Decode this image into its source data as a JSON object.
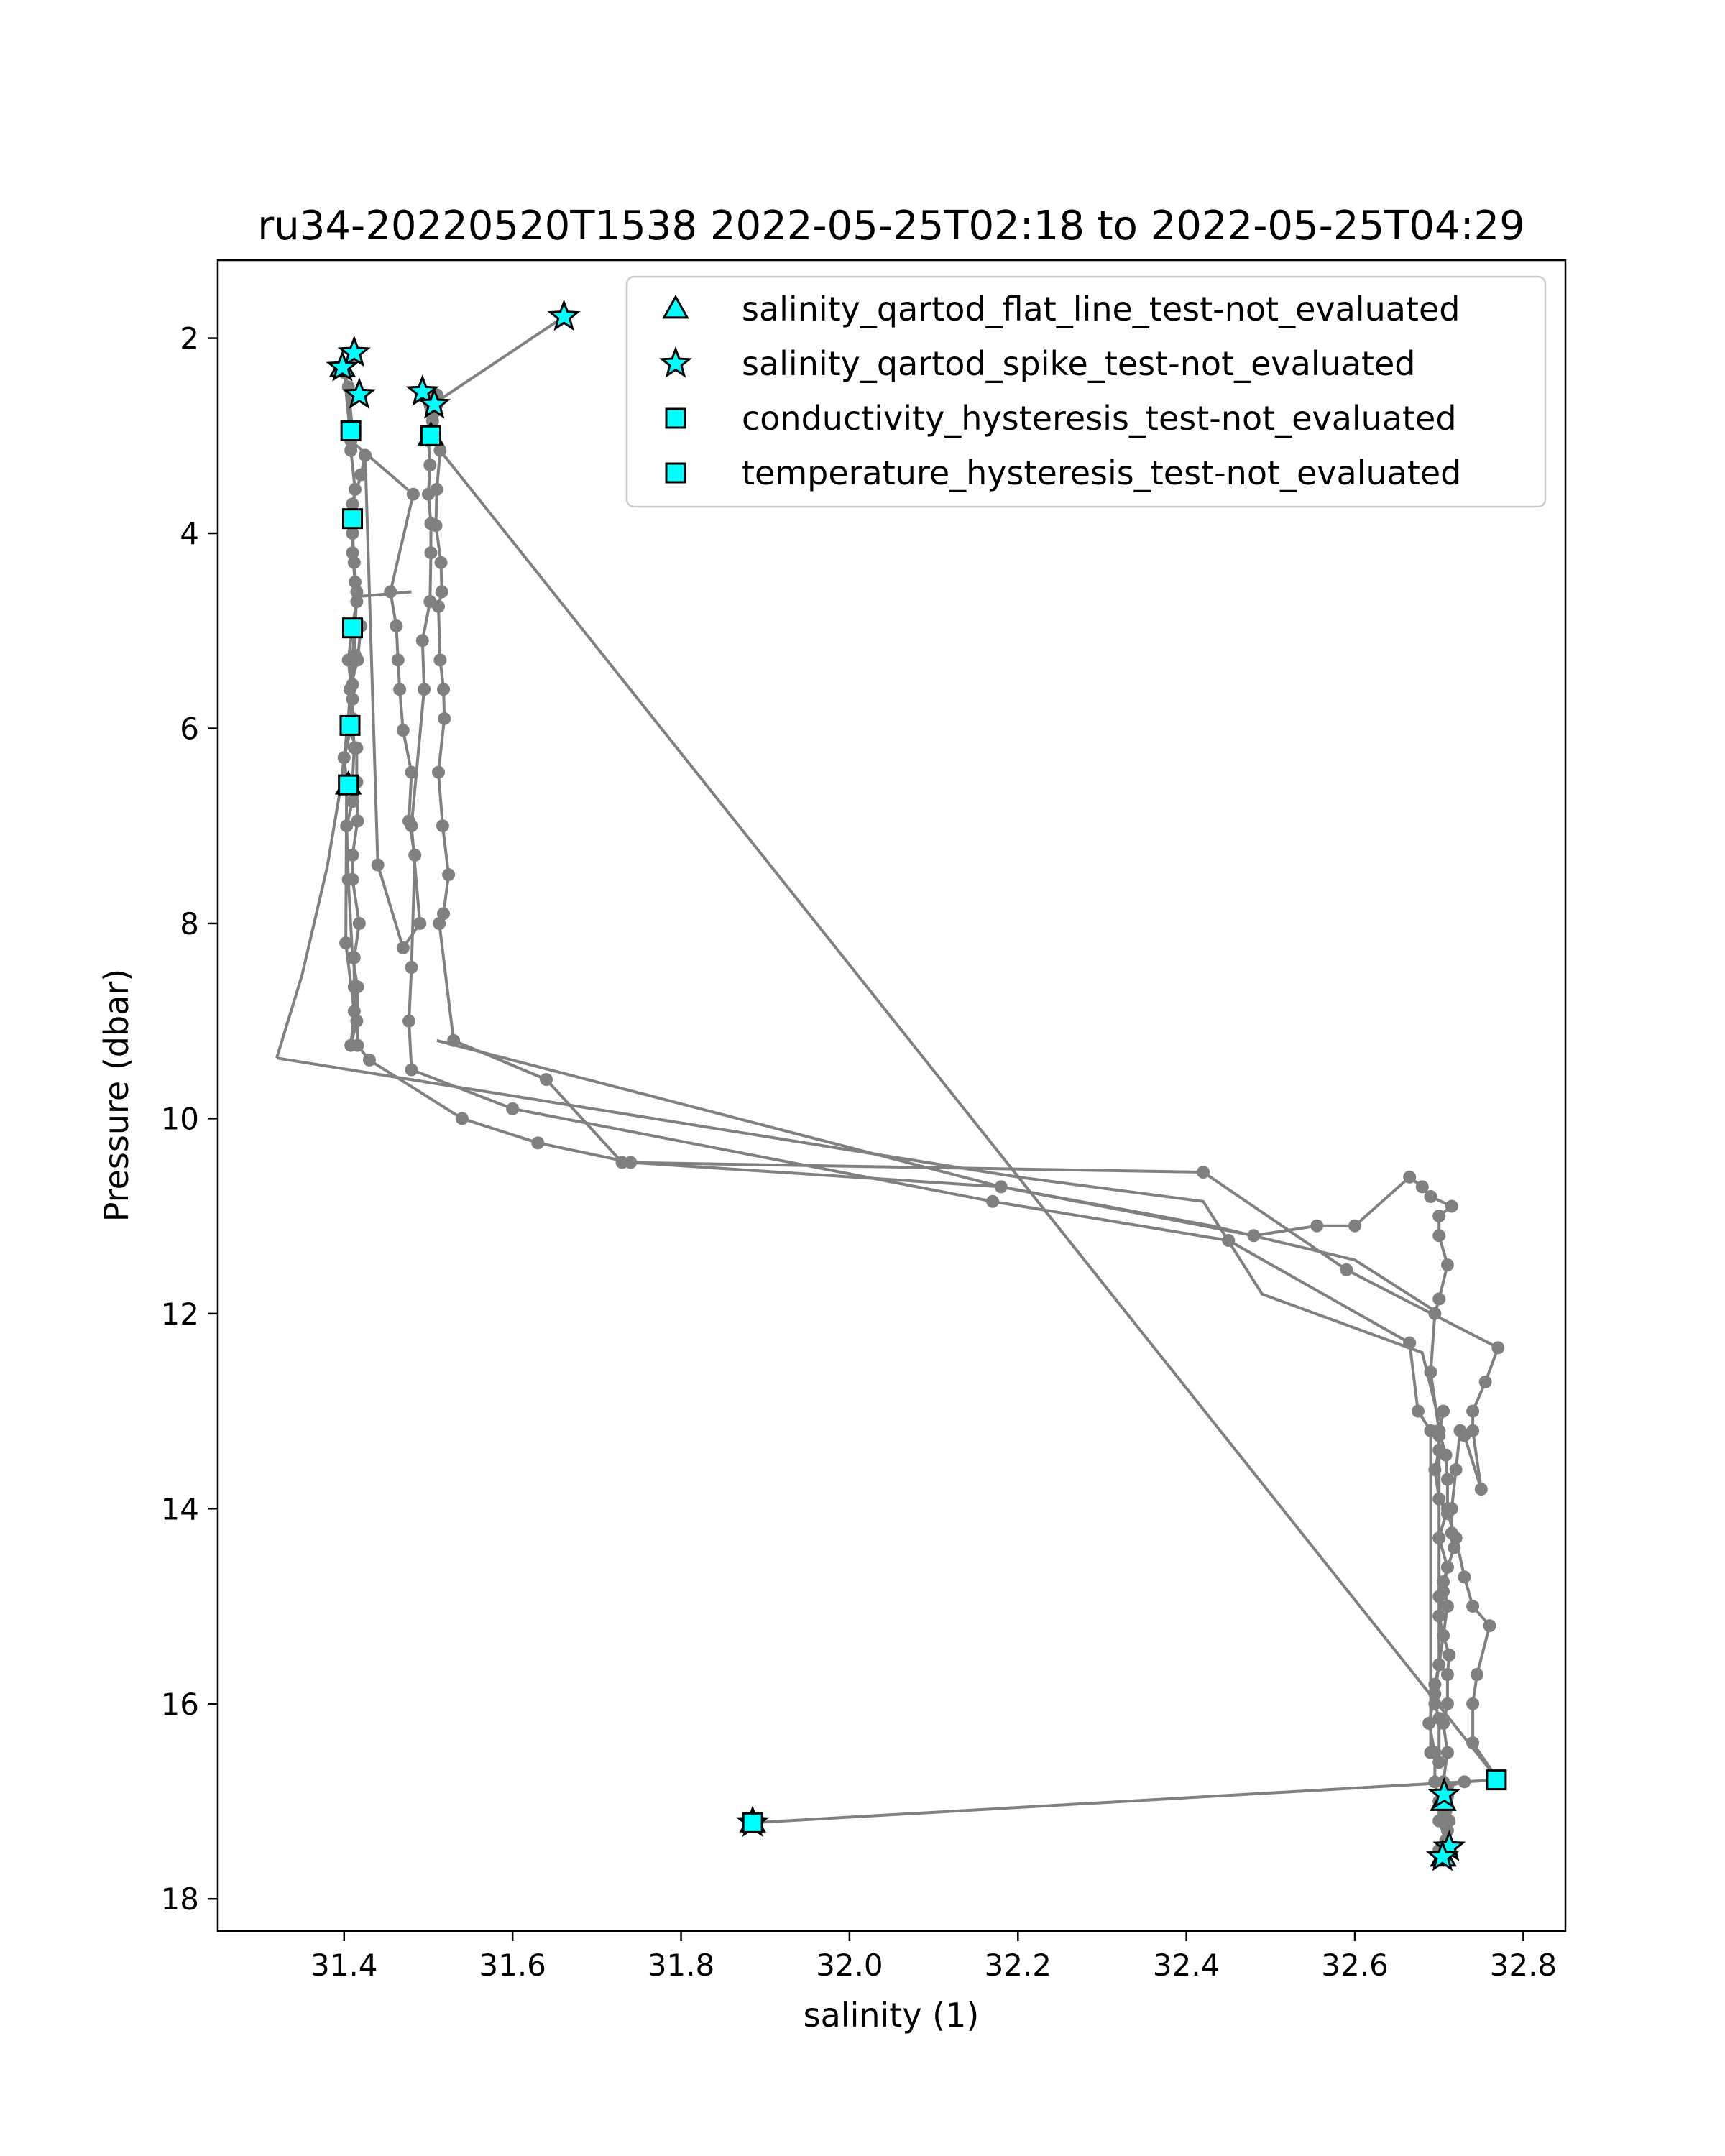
{
  "chart_data": {
    "type": "scatter",
    "title": "ru34-20220520T1538 2022-05-25T02:18 to 2022-05-25T04:29",
    "xlabel": "salinity (1)",
    "ylabel": "Pressure (dbar)",
    "xlim": [
      31.25,
      32.85
    ],
    "ylim": [
      18.33,
      1.2
    ],
    "y_inverted": true,
    "grid": false,
    "legend_position": "top-right",
    "xticks": [
      "31.4",
      "31.6",
      "31.8",
      "32.0",
      "32.2",
      "32.4",
      "32.6",
      "32.8"
    ],
    "yticks": [
      "2",
      "4",
      "6",
      "8",
      "10",
      "12",
      "14",
      "16",
      "18"
    ],
    "colors": {
      "line": "#808080",
      "marker_face": "#00ffff",
      "marker_edge": "#000000"
    },
    "profile": {
      "name": "salinity",
      "x": [
        31.661,
        31.505,
        31.493,
        31.505,
        31.514,
        31.51,
        31.509,
        31.515,
        31.516,
        31.512,
        31.514,
        31.518,
        31.519,
        31.512,
        31.517,
        31.524,
        31.518,
        31.513,
        31.53,
        31.64,
        31.73,
        32.42,
        32.59,
        32.77,
        32.755,
        32.74,
        32.74,
        32.75,
        32.73,
        32.725,
        32.72,
        32.715,
        32.715,
        32.718,
        32.71,
        32.705,
        32.71,
        32.705,
        32.712,
        32.71,
        32.71,
        32.705,
        32.71,
        32.705,
        32.71,
        32.708,
        32.71,
        32.705,
        32.7,
        32.708,
        32.7,
        32.7,
        32.695,
        32.695,
        32.688,
        32.695,
        32.7,
        32.705,
        32.7,
        32.705,
        32.71,
        32.7,
        32.71,
        32.71,
        32.708,
        32.7,
        32.705,
        32.7,
        32.7,
        32.7,
        32.7,
        32.7,
        32.695,
        32.695,
        32.7,
        32.7,
        32.69,
        32.69,
        32.675,
        32.665,
        32.45,
        32.17,
        31.6,
        31.48,
        31.477,
        31.48,
        31.484,
        31.477,
        31.48,
        31.47,
        31.466,
        31.464,
        31.462,
        31.455,
        31.482,
        31.408,
        31.4,
        31.405,
        31.41,
        31.408,
        31.413,
        31.408,
        31.41,
        31.41,
        31.413,
        31.415,
        31.41,
        31.405,
        31.41,
        31.405,
        31.415,
        31.415,
        31.416,
        31.41,
        31.41,
        31.418,
        31.412,
        31.412,
        31.415,
        31.408,
        31.412,
        31.402,
        31.403,
        31.4,
        31.408,
        31.41,
        31.407,
        31.416,
        31.42
      ],
      "y": [
        1.78,
        2.68,
        2.58,
        3.0,
        3.15,
        3.55,
        3.92,
        4.3,
        4.6,
        4.75,
        5.3,
        5.6,
        5.9,
        6.45,
        7.0,
        7.5,
        7.9,
        8.0,
        9.2,
        9.6,
        10.45,
        10.55,
        11.55,
        12.35,
        12.7,
        13.0,
        13.2,
        13.8,
        13.25,
        13.2,
        13.6,
        14.0,
        14.25,
        14.4,
        14.6,
        14.75,
        15.0,
        15.3,
        15.5,
        15.7,
        16.0,
        16.2,
        16.5,
        16.8,
        16.95,
        17.1,
        17.3,
        17.5,
        17.55,
        17.4,
        17.2,
        17.0,
        16.8,
        16.5,
        16.2,
        15.9,
        15.6,
        15.3,
        15.1,
        14.85,
        14.6,
        14.3,
        14.0,
        13.7,
        13.45,
        13.2,
        13.0,
        13.25,
        14.3,
        14.9,
        15.1,
        15.6,
        15.8,
        16.0,
        16.15,
        16.6,
        16.5,
        13.2,
        13.0,
        12.3,
        11.25,
        10.85,
        9.9,
        9.5,
        9.0,
        8.45,
        7.3,
        6.95,
        6.45,
        6.02,
        5.6,
        5.3,
        4.95,
        4.6,
        3.6,
        3.05,
        2.35,
        2.5,
        2.95,
        3.15,
        3.55,
        3.85,
        4.0,
        4.2,
        4.5,
        4.7,
        4.95,
        5.3,
        5.7,
        6.0,
        6.2,
        6.55,
        6.95,
        7.3,
        7.55,
        8.0,
        8.35,
        8.65,
        9.0,
        9.25,
        8.9,
        8.2,
        6.55,
        6.3,
        6.0,
        5.9,
        5.6,
        5.3,
        4.95
      ],
      "x2": [
        32.7,
        32.712,
        32.705,
        32.71,
        32.73,
        32.77,
        32.74,
        32.74,
        32.745,
        32.76,
        32.74,
        32.73,
        32.72,
        32.71,
        32.7,
        32.695,
        32.7,
        32.7,
        32.69,
        32.695,
        32.7,
        32.71,
        32.7,
        32.7,
        32.715,
        32.69,
        32.68,
        32.665,
        32.6,
        32.555,
        32.48,
        32.18,
        31.74,
        31.63,
        31.54,
        31.43,
        31.416,
        31.416,
        31.41,
        31.405,
        31.403,
        31.41,
        31.41,
        31.412,
        31.41,
        31.41,
        31.413,
        31.413,
        31.415,
        31.412,
        31.41,
        31.41,
        31.42,
        31.425,
        31.44,
        31.47,
        31.49,
        31.48,
        31.495,
        31.493,
        31.502,
        31.503,
        31.503,
        31.5,
        31.502,
        31.5,
        31.503,
        31.505,
        31.505,
        31.508,
        31.51,
        31.508,
        31.51
      ],
      "y2": [
        17.5,
        17.2,
        17.0,
        16.85,
        16.8,
        16.78,
        16.4,
        16.0,
        15.7,
        15.2,
        15.0,
        14.7,
        14.3,
        14.05,
        13.9,
        13.6,
        13.4,
        13.2,
        12.6,
        12.0,
        11.85,
        11.5,
        11.2,
        11.0,
        10.9,
        10.8,
        10.7,
        10.6,
        11.1,
        11.1,
        11.2,
        10.7,
        10.45,
        10.25,
        10.0,
        9.4,
        9.25,
        8.65,
        8.35,
        7.55,
        7.0,
        6.75,
        6.55,
        6.2,
        5.9,
        5.55,
        5.25,
        5.0,
        4.6,
        4.3,
        4.0,
        3.7,
        3.4,
        3.2,
        7.4,
        8.25,
        8.0,
        7.0,
        5.6,
        5.1,
        4.7,
        4.2,
        3.9,
        3.6,
        3.3,
        3.05,
        3.0,
        2.95,
        2.85,
        2.75,
        2.68,
        2.62,
        2.58
      ],
      "x3": [
        31.32,
        31.35,
        31.38,
        31.395,
        31.4,
        31.405,
        31.415,
        31.48
      ],
      "y3": [
        9.38,
        8.53,
        7.42,
        6.65,
        6.3,
        5.9,
        4.65,
        4.6
      ],
      "x4": [
        31.32,
        32.2,
        32.42,
        32.49,
        32.68,
        32.7
      ],
      "y4": [
        9.38,
        10.6,
        10.85,
        11.8,
        12.4,
        13.1
      ],
      "x5": [
        31.51,
        32.18,
        32.43,
        32.6,
        32.7
      ],
      "y5": [
        9.2,
        10.7,
        11.1,
        11.45,
        12.0
      ],
      "x6": [
        31.5,
        32.77,
        31.885
      ],
      "y6": [
        3.0,
        16.78,
        17.22
      ]
    },
    "legend": [
      {
        "label": "salinity_qartod_flat_line_test-not_evaluated",
        "marker": "triangle"
      },
      {
        "label": "salinity_qartod_spike_test-not_evaluated",
        "marker": "star"
      },
      {
        "label": "conductivity_hysteresis_test-not_evaluated",
        "marker": "square"
      },
      {
        "label": "temperature_hysteresis_test-not_evaluated",
        "marker": "square"
      }
    ],
    "flagged": {
      "triangle": {
        "x": [
          31.398,
          31.405,
          31.503,
          31.885,
          32.705,
          32.705
        ],
        "y": [
          2.3,
          6.58,
          3.0,
          17.22,
          17.0,
          17.57
        ]
      },
      "star": {
        "x": [
          31.661,
          31.412,
          31.398,
          31.418,
          31.493,
          31.507,
          31.885,
          32.706,
          32.712,
          32.704
        ],
        "y": [
          1.78,
          2.15,
          2.3,
          2.58,
          2.55,
          2.68,
          17.22,
          16.93,
          17.47,
          17.57
        ]
      },
      "square": {
        "x": [
          31.408,
          31.41,
          31.41,
          31.407,
          31.405,
          31.503,
          31.885,
          32.768
        ],
        "y": [
          2.95,
          3.85,
          4.97,
          5.97,
          6.58,
          3.0,
          17.22,
          16.78
        ]
      }
    }
  }
}
